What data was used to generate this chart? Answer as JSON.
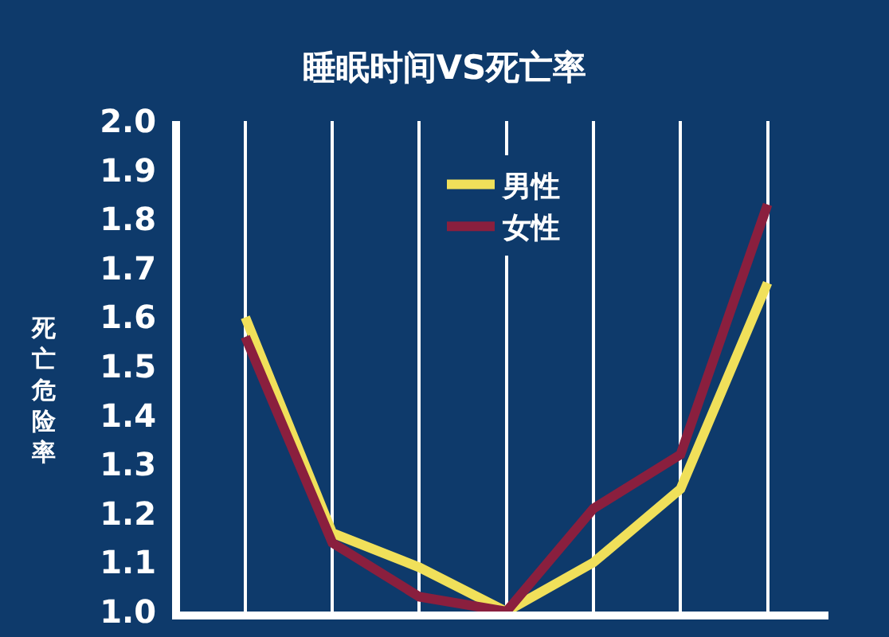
{
  "chart_data": {
    "type": "line",
    "title": "睡眠时间VS死亡率",
    "ylabel": "死亡危险率",
    "categories": [
      null,
      null,
      null,
      null,
      null,
      null,
      null
    ],
    "series": [
      {
        "name": "男性",
        "color": "#f0e05a",
        "values": [
          1.6,
          1.16,
          1.09,
          1.0,
          1.1,
          1.25,
          1.67
        ]
      },
      {
        "name": "女性",
        "color": "#8a1f3e",
        "values": [
          1.56,
          1.14,
          1.03,
          1.0,
          1.21,
          1.32,
          1.83
        ]
      }
    ],
    "ylim": [
      1.0,
      2.0
    ],
    "yticks": [
      {
        "value": 1.0,
        "label": "1.0"
      },
      1.1,
      1.2,
      1.3,
      1.4,
      1.5,
      1.6,
      1.7,
      1.8,
      1.9,
      {
        "value": 2.0,
        "label": "2.0"
      }
    ],
    "grid": "x",
    "legend": "top",
    "tick_labels": "y",
    "marker": "none",
    "line_style": "solid"
  }
}
